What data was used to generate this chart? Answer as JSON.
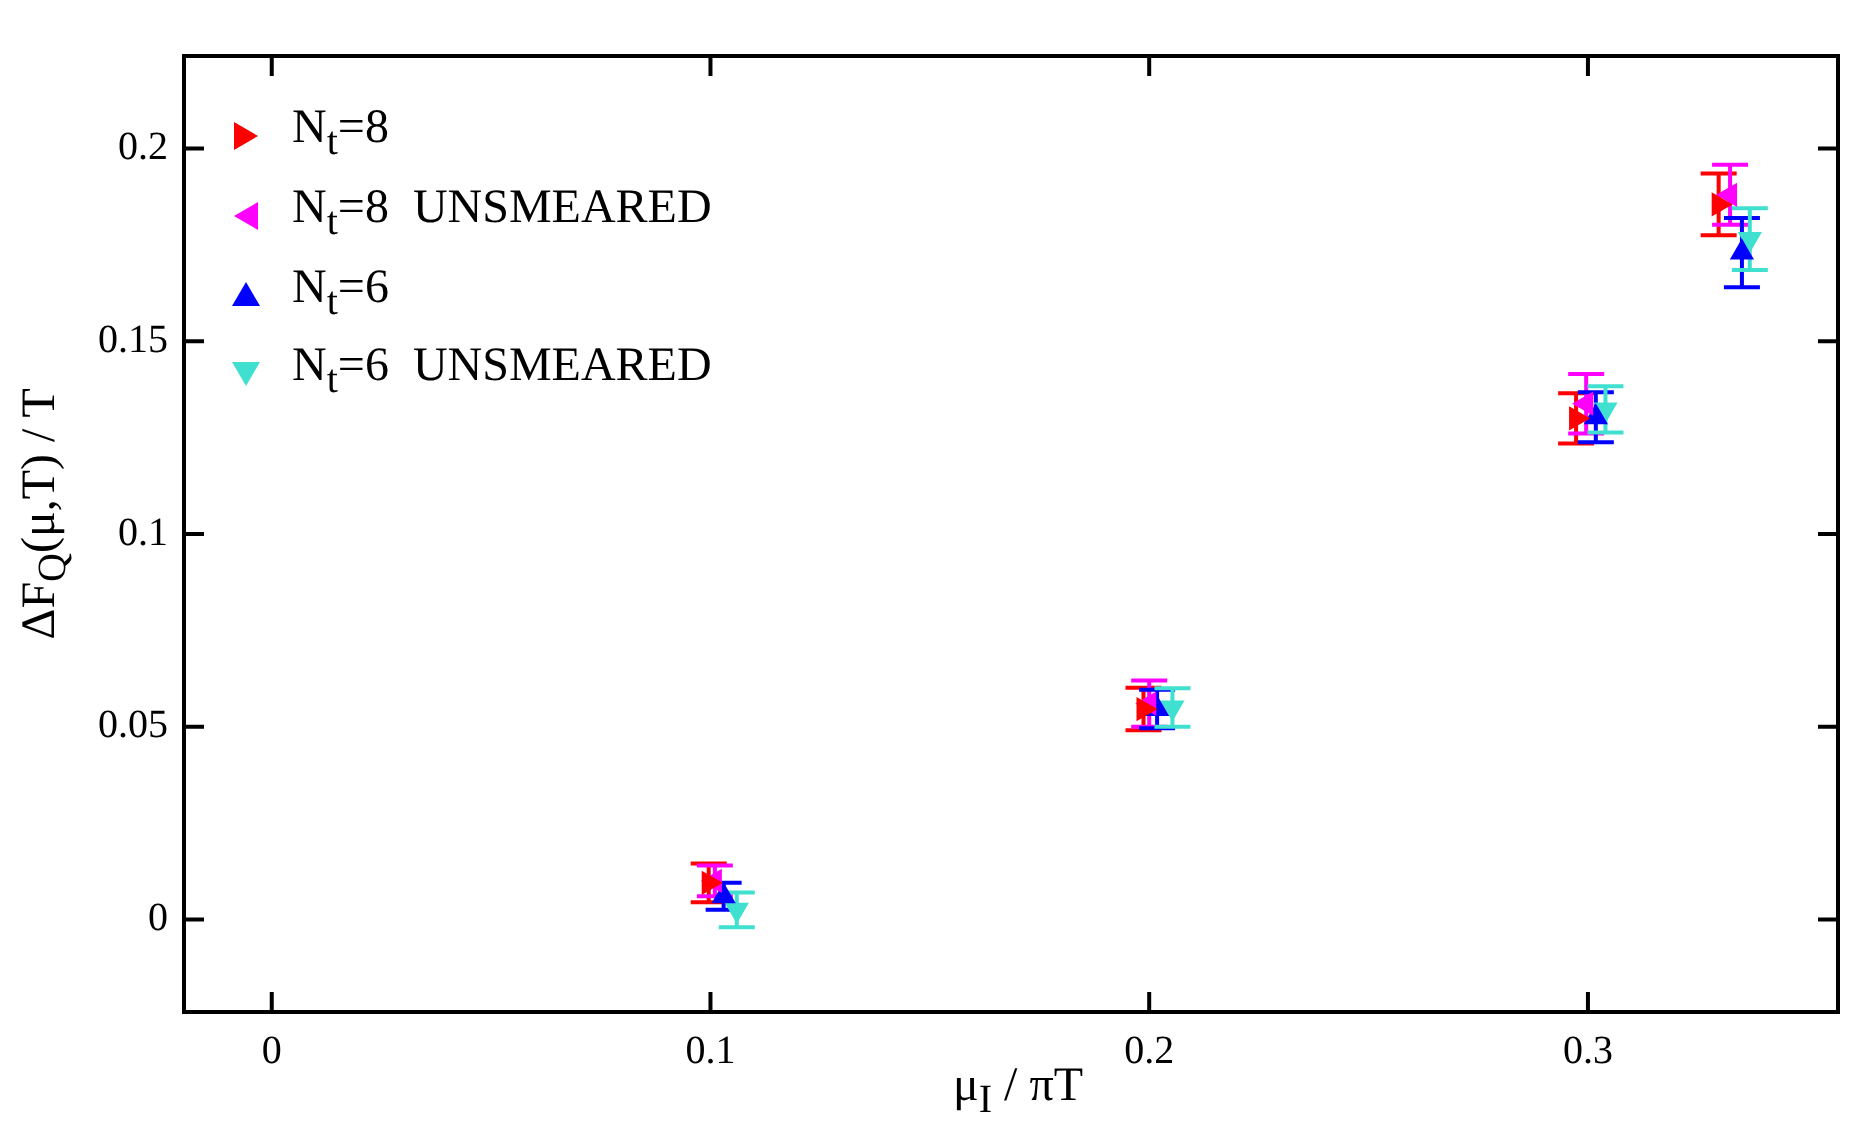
{
  "chart_data": {
    "type": "scatter",
    "xlabel": "μ$_{I}$ / πT",
    "ylabel": "ΔF$_{Q}$(μ,T) / T",
    "xlim": [
      -0.02,
      0.357
    ],
    "xticks": [
      0,
      0.1,
      0.2,
      0.3
    ],
    "ylim": [
      -0.024,
      0.224
    ],
    "yticks": [
      0,
      0.05,
      0.1,
      0.15,
      0.2
    ],
    "grid": false,
    "legend": "top left",
    "marker": "triangle",
    "series": [
      {
        "name": "N$_{t}$=8",
        "color": "#ff0000",
        "x": [
          0.0996,
          0.1987,
          0.2973,
          0.3298
        ],
        "values": [
          0.0095,
          0.0546,
          0.13,
          0.1855
        ],
        "errors": [
          0.005,
          0.0055,
          0.0065,
          0.008
        ]
      },
      {
        "name": "N$_{t}$=8  UNSMEARED",
        "color": "#ff00ff",
        "x": [
          0.101,
          0.2,
          0.2996,
          0.3324
        ],
        "values": [
          0.01,
          0.056,
          0.1338,
          0.188
        ],
        "errors": [
          0.004,
          0.006,
          0.0077,
          0.0078
        ]
      },
      {
        "name": "N$_{t}$=6",
        "color": "#0000ff",
        "x": [
          0.103,
          0.2018,
          0.3018,
          0.3351
        ],
        "values": [
          0.006,
          0.0546,
          0.1303,
          0.173
        ],
        "errors": [
          0.0035,
          0.005,
          0.0065,
          0.009
        ]
      },
      {
        "name": "N$_{t}$=6  UNSMEARED",
        "color": "#40e0d0",
        "x": [
          0.106,
          0.2053,
          0.304,
          0.3369
        ],
        "values": [
          0.0025,
          0.055,
          0.1323,
          0.1765
        ],
        "errors": [
          0.0045,
          0.005,
          0.006,
          0.008
        ]
      }
    ]
  }
}
